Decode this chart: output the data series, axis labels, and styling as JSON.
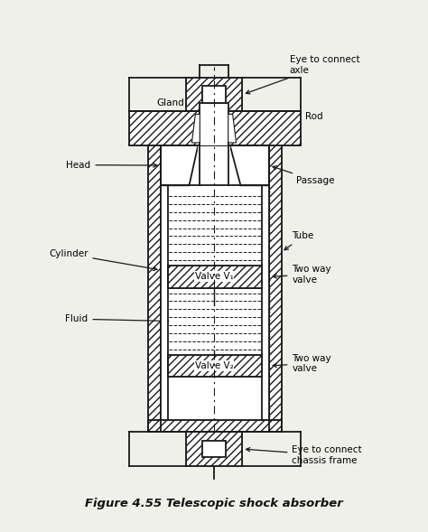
{
  "title": "Figure 4.55 Telescopic shock absorber",
  "bg_color": "#f0f0eb",
  "line_color": "#1a1a1a",
  "labels": {
    "eye_top": "Eye to connect\naxle",
    "gland": "Gland",
    "rod": "Rod",
    "head": "Head",
    "passage": "Passage",
    "cylinder": "Cylinder",
    "tube": "Tube",
    "valve_v1": "Valve V₁",
    "two_way_1": "Two way\nvalve",
    "fluid": "Fluid",
    "valve_v2": "Valve V₂",
    "two_way_2": "Two way\nvalve",
    "eye_bottom": "Eye to connect\nchassis frame"
  },
  "font_size_label": 7.5,
  "font_size_title": 9.5
}
